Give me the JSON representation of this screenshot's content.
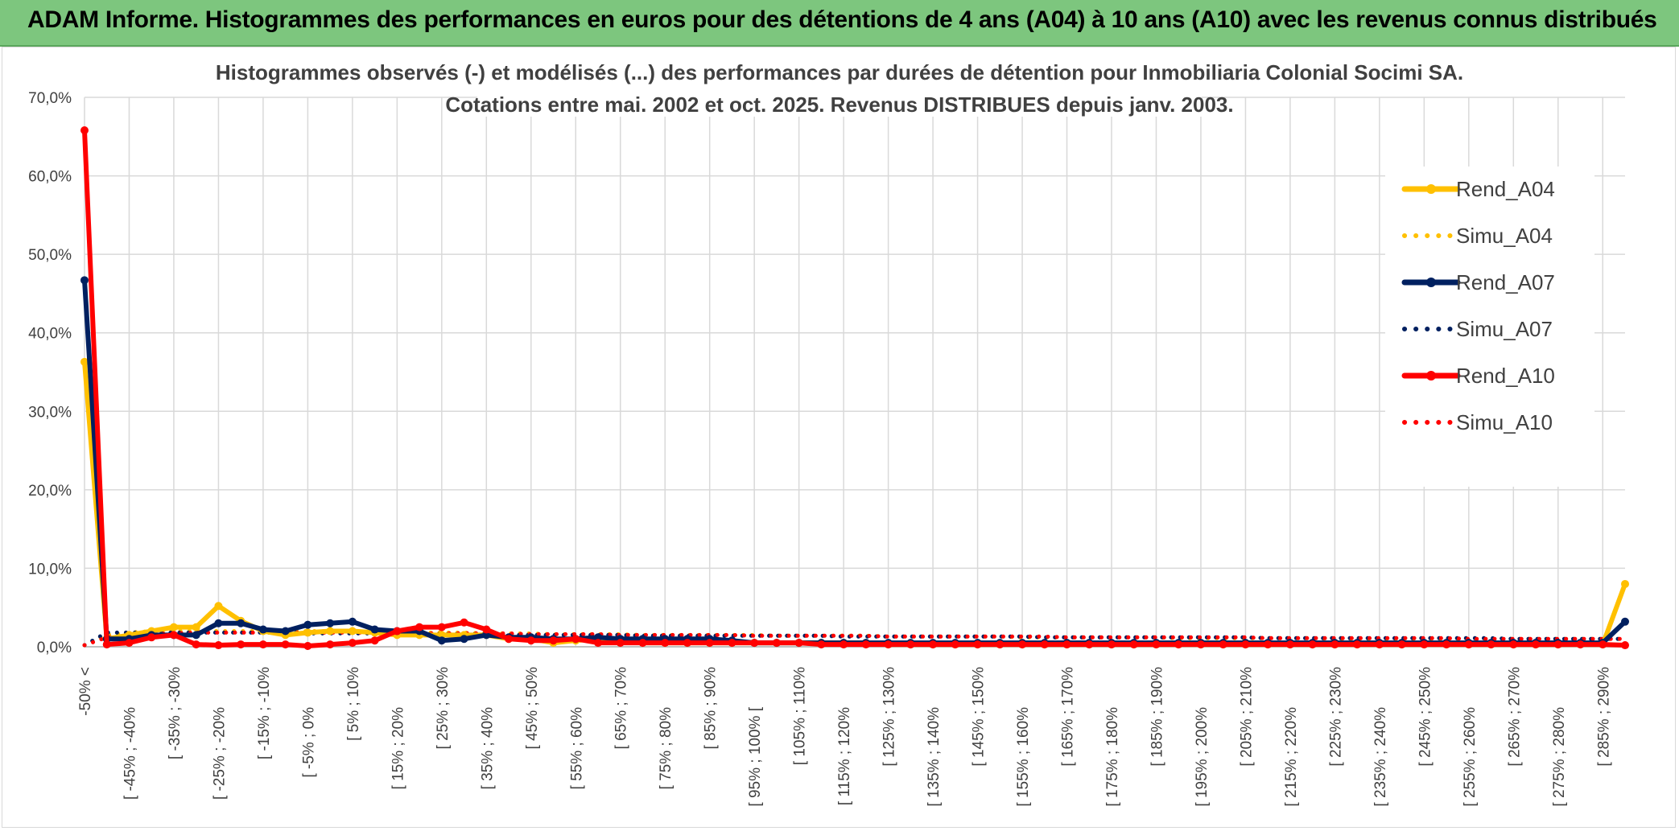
{
  "banner": {
    "title": "ADAM Informe. Histogrammes des performances en euros pour des détentions de 4 ans (A04) à 10 ans (A10) avec les revenus connus distribués"
  },
  "colors": {
    "banner_bg": "#7dc67e",
    "A04": "#ffc000",
    "A07": "#002060",
    "A10": "#ff0000",
    "grid": "#d9d9d9"
  },
  "chart_data": {
    "type": "line",
    "title": [
      "Histogrammes observés (-) et modélisés (...) des performances par durées de détention pour Inmobiliaria Colonial Socimi SA.",
      "Cotations entre mai. 2002 et oct. 2025. Revenus DISTRIBUES depuis janv. 2003."
    ],
    "ylim": [
      0,
      70
    ],
    "yticks": [
      "0,0%",
      "10,0%",
      "20,0%",
      "30,0%",
      "40,0%",
      "50,0%",
      "60,0%",
      "70,0%"
    ],
    "grid": true,
    "legend_position": "right",
    "x_labels": [
      "-50% <",
      "[ -45% ; -40%",
      "[ -35% ; -30%",
      "[ -25% ; -20%",
      "[ -15% ; -10%",
      "[ -5% ; 0%",
      "[ 5% ; 10%",
      "[ 15% ; 20%",
      "[ 25% ; 30%",
      "[ 35% ; 40%",
      "[ 45% ; 50%",
      "[ 55% ; 60%",
      "[ 65% ; 70%",
      "[ 75% ; 80%",
      "[ 85% ; 90%",
      "[ 95% ; 100% [",
      "[ 105% ; 110%",
      "[ 115% ; 120%",
      "[ 125% ; 130%",
      "[ 135% ; 140%",
      "[ 145% ; 150%",
      "[ 155% ; 160%",
      "[ 165% ; 170%",
      "[ 175% ; 180%",
      "[ 185% ; 190%",
      "[ 195% ; 200%",
      "[ 205% ; 210%",
      "[ 215% ; 220%",
      "[ 225% ; 230%",
      "[ 235% ; 240%",
      "[ 245% ; 250%",
      "[ 255% ; 260%",
      "[ 265% ; 270%",
      "[ 275% ; 280%",
      "[ 285% ; 290%"
    ],
    "series": [
      {
        "name": "Rend_A04",
        "style": "solid",
        "color": "#ffc000",
        "values": [
          36.3,
          1.0,
          1.5,
          2.0,
          2.5,
          2.5,
          5.2,
          3.3,
          2.0,
          1.5,
          1.8,
          2.0,
          2.0,
          1.8,
          1.5,
          1.5,
          1.5,
          1.5,
          1.5,
          1.0,
          1.0,
          0.5,
          0.8,
          1.0,
          0.8,
          0.5,
          0.5,
          0.5,
          0.5,
          0.5,
          0.5,
          0.5,
          0.5,
          0.5,
          0.5,
          0.5,
          0.3,
          0.3,
          0.3,
          0.3,
          0.3,
          0.3,
          0.3,
          0.3,
          0.3,
          0.3,
          0.3,
          0.3,
          0.3,
          0.3,
          0.3,
          0.3,
          0.3,
          0.3,
          0.3,
          0.3,
          0.3,
          0.3,
          0.3,
          0.3,
          0.3,
          0.3,
          0.3,
          0.3,
          0.3,
          0.3,
          0.3,
          0.3,
          0.3,
          8.0
        ]
      },
      {
        "name": "Simu_A04",
        "style": "dotted",
        "color": "#ffc000",
        "values": [
          0.2,
          1.5,
          1.8,
          2.0,
          2.0,
          2.0,
          2.0,
          2.0,
          2.0,
          2.0,
          2.0,
          2.0,
          1.9,
          1.9,
          1.9,
          1.8,
          1.8,
          1.8,
          1.7,
          1.7,
          1.7,
          1.6,
          1.6,
          1.6,
          1.6,
          1.5,
          1.5,
          1.5,
          1.5,
          1.5,
          1.5,
          1.4,
          1.4,
          1.4,
          1.4,
          1.4,
          1.3,
          1.3,
          1.3,
          1.3,
          1.3,
          1.3,
          1.2,
          1.2,
          1.2,
          1.2,
          1.2,
          1.2,
          1.2,
          1.1,
          1.1,
          1.1,
          1.1,
          1.1,
          1.1,
          1.1,
          1.0,
          1.0,
          1.0,
          1.0,
          1.0,
          1.0,
          1.0,
          1.0,
          1.0,
          1.0,
          1.0,
          1.0,
          1.0,
          1.0
        ]
      },
      {
        "name": "Rend_A07",
        "style": "solid",
        "color": "#002060",
        "values": [
          46.7,
          1.0,
          1.0,
          1.5,
          1.5,
          1.5,
          3.0,
          3.0,
          2.2,
          2.0,
          2.8,
          3.0,
          3.2,
          2.2,
          2.0,
          2.0,
          0.8,
          1.0,
          1.5,
          1.2,
          1.2,
          1.0,
          1.0,
          1.2,
          1.0,
          1.0,
          1.0,
          1.0,
          1.0,
          0.8,
          0.5,
          0.5,
          0.5,
          0.5,
          0.5,
          0.5,
          0.5,
          0.5,
          0.5,
          0.5,
          0.5,
          0.5,
          0.5,
          0.5,
          0.5,
          0.5,
          0.5,
          0.5,
          0.5,
          0.5,
          0.5,
          0.5,
          0.5,
          0.5,
          0.5,
          0.5,
          0.5,
          0.5,
          0.5,
          0.5,
          0.5,
          0.5,
          0.5,
          0.5,
          0.5,
          0.5,
          0.5,
          0.5,
          0.5,
          3.2
        ]
      },
      {
        "name": "Simu_A07",
        "style": "dotted",
        "color": "#002060",
        "values": [
          0.2,
          1.8,
          1.8,
          1.8,
          1.8,
          1.8,
          1.8,
          1.8,
          1.8,
          1.8,
          1.7,
          1.7,
          1.7,
          1.7,
          1.7,
          1.6,
          1.6,
          1.6,
          1.6,
          1.5,
          1.5,
          1.5,
          1.5,
          1.5,
          1.5,
          1.4,
          1.4,
          1.4,
          1.4,
          1.4,
          1.4,
          1.4,
          1.4,
          1.4,
          1.3,
          1.3,
          1.3,
          1.3,
          1.3,
          1.3,
          1.3,
          1.3,
          1.3,
          1.2,
          1.2,
          1.2,
          1.2,
          1.2,
          1.2,
          1.2,
          1.2,
          1.2,
          1.2,
          1.1,
          1.1,
          1.1,
          1.1,
          1.1,
          1.1,
          1.1,
          1.1,
          1.1,
          1.1,
          1.1,
          1.0,
          1.0,
          1.0,
          1.0,
          1.0,
          1.0
        ]
      },
      {
        "name": "Rend_A10",
        "style": "solid",
        "color": "#ff0000",
        "values": [
          65.8,
          0.3,
          0.5,
          1.2,
          1.5,
          0.3,
          0.2,
          0.3,
          0.3,
          0.3,
          0.1,
          0.3,
          0.5,
          0.8,
          2.0,
          2.5,
          2.5,
          3.1,
          2.2,
          1.0,
          0.8,
          0.8,
          1.0,
          0.5,
          0.5,
          0.5,
          0.5,
          0.5,
          0.5,
          0.5,
          0.5,
          0.5,
          0.5,
          0.3,
          0.3,
          0.3,
          0.3,
          0.3,
          0.3,
          0.3,
          0.3,
          0.3,
          0.3,
          0.3,
          0.3,
          0.3,
          0.3,
          0.3,
          0.3,
          0.3,
          0.3,
          0.3,
          0.3,
          0.3,
          0.3,
          0.3,
          0.3,
          0.3,
          0.3,
          0.3,
          0.3,
          0.3,
          0.3,
          0.3,
          0.3,
          0.3,
          0.3,
          0.3,
          0.3,
          0.2
        ]
      },
      {
        "name": "Simu_A10",
        "style": "dotted",
        "color": "#ff0000",
        "values": [
          0.2,
          1.2,
          1.4,
          1.6,
          1.7,
          1.8,
          1.8,
          1.8,
          1.8,
          1.8,
          1.8,
          1.8,
          1.8,
          1.8,
          1.8,
          1.7,
          1.7,
          1.7,
          1.7,
          1.7,
          1.6,
          1.6,
          1.6,
          1.6,
          1.5,
          1.5,
          1.5,
          1.5,
          1.5,
          1.5,
          1.4,
          1.4,
          1.4,
          1.4,
          1.4,
          1.4,
          1.3,
          1.3,
          1.3,
          1.3,
          1.3,
          1.3,
          1.3,
          1.3,
          1.2,
          1.2,
          1.2,
          1.2,
          1.2,
          1.2,
          1.2,
          1.2,
          1.2,
          1.1,
          1.1,
          1.1,
          1.1,
          1.1,
          1.1,
          1.1,
          1.1,
          1.1,
          1.0,
          1.0,
          1.0,
          1.0,
          1.0,
          1.0,
          1.0,
          1.0
        ]
      }
    ]
  }
}
